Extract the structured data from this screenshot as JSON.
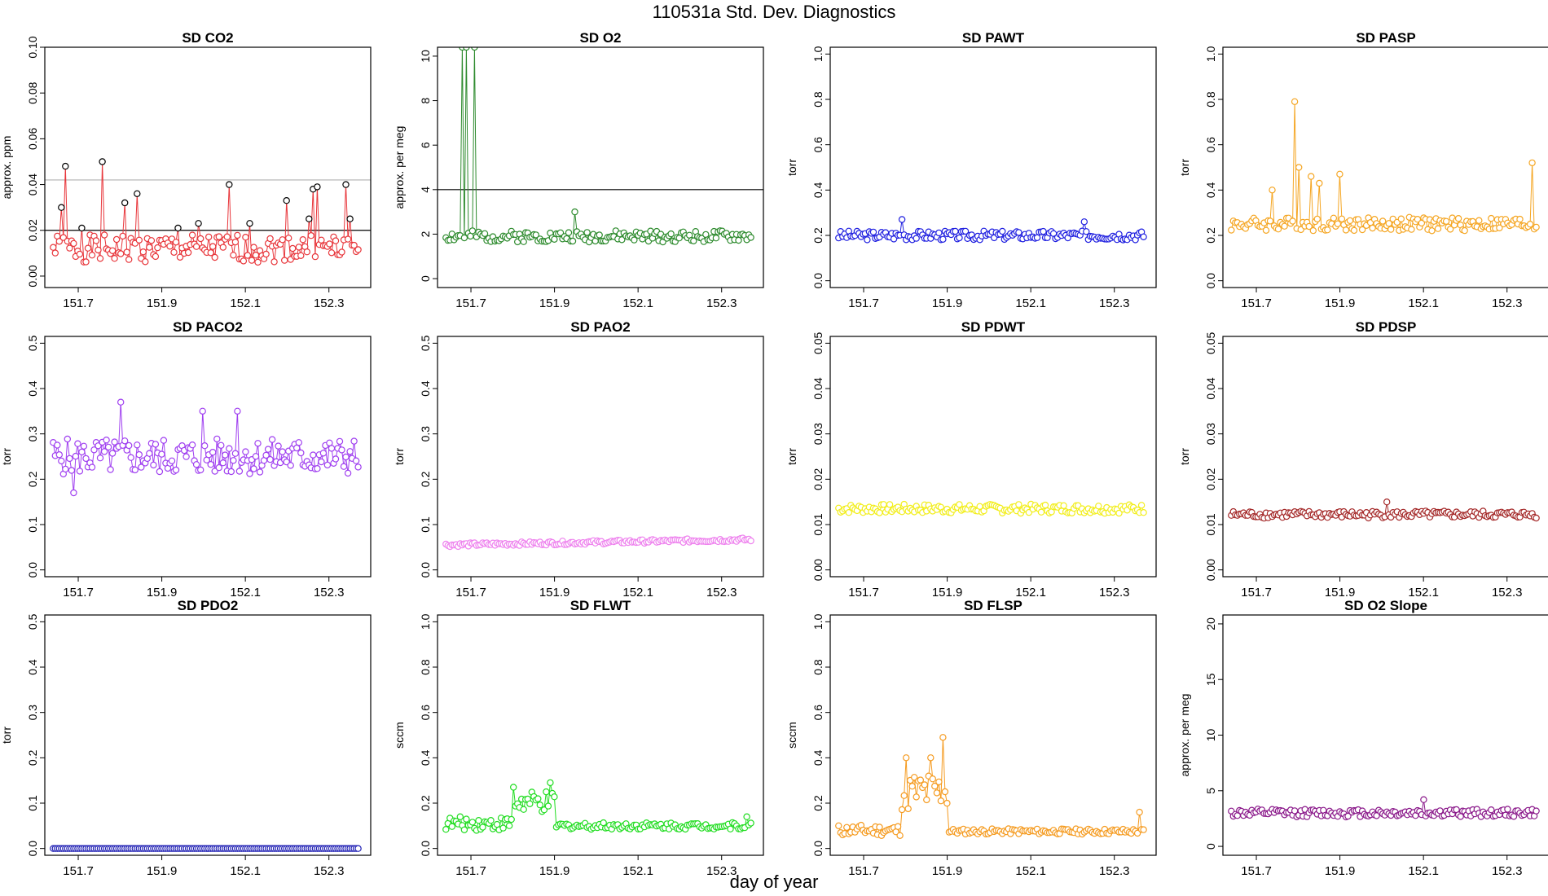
{
  "page_title": "110531a   Std. Dev. Diagnostics",
  "common_xlabel": "day of year",
  "chart_data": [
    {
      "type": "scatter",
      "title": "SD CO2",
      "ylabel": "approx. ppm",
      "color": "#e8363b",
      "xlim": [
        151.62,
        152.4
      ],
      "ylim": [
        -0.005,
        0.1
      ],
      "xticks": [
        "151.7",
        "151.9",
        "152.1",
        "152.3"
      ],
      "yticks": [
        "0.00",
        "0.02",
        "0.04",
        "0.06",
        "0.08",
        "0.10"
      ],
      "hlines": [
        {
          "y": 0.02,
          "color": "#000000"
        },
        {
          "y": 0.042,
          "color": "#b0b0b0"
        }
      ],
      "mean": 0.012,
      "spread": 0.006,
      "seed": 1,
      "spikes": [
        [
          151.66,
          0.03
        ],
        [
          151.67,
          0.048
        ],
        [
          151.71,
          0.021
        ],
        [
          151.76,
          0.05
        ],
        [
          151.81,
          0.032
        ],
        [
          151.84,
          0.036
        ],
        [
          151.94,
          0.021
        ],
        [
          151.99,
          0.023
        ],
        [
          152.06,
          0.04
        ],
        [
          152.11,
          0.023
        ],
        [
          152.2,
          0.033
        ],
        [
          152.25,
          0.025
        ],
        [
          152.26,
          0.038
        ],
        [
          152.27,
          0.039
        ],
        [
          152.34,
          0.04
        ],
        [
          152.35,
          0.025
        ]
      ],
      "outlined_black": true
    },
    {
      "type": "scatter",
      "title": "SD O2",
      "ylabel": "approx. per meg",
      "color": "#2e8b2e",
      "xlim": [
        151.62,
        152.4
      ],
      "ylim": [
        -0.4,
        10.4
      ],
      "xticks": [
        "151.7",
        "151.9",
        "152.1",
        "152.3"
      ],
      "yticks": [
        "0",
        "2",
        "4",
        "6",
        "8",
        "10"
      ],
      "hlines": [
        {
          "y": 4,
          "color": "#000000"
        }
      ],
      "mean": 1.9,
      "spread": 0.25,
      "seed": 2,
      "spikes": [
        [
          151.68,
          10.4
        ],
        [
          151.69,
          10.4
        ],
        [
          151.71,
          10.4
        ],
        [
          151.95,
          3.0
        ]
      ],
      "outlined_black": false
    },
    {
      "type": "scatter",
      "title": "SD PAWT",
      "ylabel": "torr",
      "color": "#2020e0",
      "xlim": [
        151.62,
        152.4
      ],
      "ylim": [
        -0.03,
        1.03
      ],
      "xticks": [
        "151.7",
        "151.9",
        "152.1",
        "152.3"
      ],
      "yticks": [
        "0.0",
        "0.2",
        "0.4",
        "0.6",
        "0.8",
        "1.0"
      ],
      "hlines": [],
      "mean": 0.2,
      "spread": 0.02,
      "seed": 3,
      "spikes": [
        [
          151.79,
          0.27
        ],
        [
          152.23,
          0.26
        ]
      ],
      "outlined_black": false
    },
    {
      "type": "scatter",
      "title": "SD PASP",
      "ylabel": "torr",
      "color": "#f5a623",
      "xlim": [
        151.62,
        152.4
      ],
      "ylim": [
        -0.03,
        1.03
      ],
      "xticks": [
        "151.7",
        "151.9",
        "152.1",
        "152.3"
      ],
      "yticks": [
        "0.0",
        "0.2",
        "0.4",
        "0.6",
        "0.8",
        "1.0"
      ],
      "hlines": [],
      "mean": 0.25,
      "spread": 0.03,
      "seed": 4,
      "spikes": [
        [
          151.79,
          0.79
        ],
        [
          151.8,
          0.5
        ],
        [
          151.83,
          0.46
        ],
        [
          151.85,
          0.43
        ],
        [
          151.9,
          0.47
        ],
        [
          151.74,
          0.4
        ],
        [
          152.36,
          0.52
        ]
      ],
      "outlined_black": false
    },
    {
      "type": "scatter",
      "title": "SD PACO2",
      "ylabel": "torr",
      "color": "#a040f0",
      "xlim": [
        151.62,
        152.4
      ],
      "ylim": [
        -0.015,
        0.515
      ],
      "xticks": [
        "151.7",
        "151.9",
        "152.1",
        "152.3"
      ],
      "yticks": [
        "0.0",
        "0.1",
        "0.2",
        "0.3",
        "0.4",
        "0.5"
      ],
      "hlines": [],
      "mean": 0.25,
      "spread": 0.04,
      "seed": 5,
      "spikes": [
        [
          151.8,
          0.37
        ],
        [
          152.0,
          0.35
        ],
        [
          152.08,
          0.35
        ],
        [
          151.69,
          0.17
        ]
      ],
      "outlined_black": false
    },
    {
      "type": "scatter",
      "title": "SD PAO2",
      "ylabel": "torr",
      "color": "#ee82ee",
      "xlim": [
        151.62,
        152.4
      ],
      "ylim": [
        -0.015,
        0.515
      ],
      "xticks": [
        "151.7",
        "151.9",
        "152.1",
        "152.3"
      ],
      "yticks": [
        "0.0",
        "0.1",
        "0.2",
        "0.3",
        "0.4",
        "0.5"
      ],
      "hlines": [],
      "mean": 0.055,
      "spread": 0.004,
      "seed": 6,
      "trend": 0.012,
      "spikes": [],
      "outlined_black": false
    },
    {
      "type": "scatter",
      "title": "SD PDWT",
      "ylabel": "torr",
      "color": "#f2ee1a",
      "xlim": [
        151.62,
        152.4
      ],
      "ylim": [
        -0.0015,
        0.0515
      ],
      "xticks": [
        "151.7",
        "151.9",
        "152.1",
        "152.3"
      ],
      "yticks": [
        "0.00",
        "0.01",
        "0.02",
        "0.03",
        "0.04",
        "0.05"
      ],
      "hlines": [],
      "mean": 0.0135,
      "spread": 0.001,
      "seed": 7,
      "spikes": [],
      "outlined_black": false
    },
    {
      "type": "scatter",
      "title": "SD PDSP",
      "ylabel": "torr",
      "color": "#a52a2a",
      "xlim": [
        151.62,
        152.4
      ],
      "ylim": [
        -0.0015,
        0.0515
      ],
      "xticks": [
        "151.7",
        "151.9",
        "152.1",
        "152.3"
      ],
      "yticks": [
        "0.00",
        "0.01",
        "0.02",
        "0.03",
        "0.04",
        "0.05"
      ],
      "hlines": [],
      "mean": 0.0122,
      "spread": 0.0008,
      "seed": 8,
      "spikes": [
        [
          152.01,
          0.015
        ]
      ],
      "outlined_black": false
    },
    {
      "type": "scatter",
      "title": "SD PDO2",
      "ylabel": "torr",
      "color": "#1f1fb4",
      "xlim": [
        151.62,
        152.4
      ],
      "ylim": [
        -0.015,
        0.515
      ],
      "xticks": [
        "151.7",
        "151.9",
        "152.1",
        "152.3"
      ],
      "yticks": [
        "0.0",
        "0.1",
        "0.2",
        "0.3",
        "0.4",
        "0.5"
      ],
      "hlines": [],
      "mean": 0.0,
      "spread": 0.0,
      "seed": 9,
      "spikes": [],
      "outlined_black": false
    },
    {
      "type": "scatter",
      "title": "SD FLWT",
      "ylabel": "sccm",
      "color": "#22dd22",
      "xlim": [
        151.62,
        152.4
      ],
      "ylim": [
        -0.03,
        1.03
      ],
      "xticks": [
        "151.7",
        "151.9",
        "152.1",
        "152.3"
      ],
      "yticks": [
        "0.0",
        "0.2",
        "0.4",
        "0.6",
        "0.8",
        "1.0"
      ],
      "hlines": [],
      "mean": 0.1,
      "spread": 0.015,
      "seed": 10,
      "segments": [
        [
          151.63,
          151.8,
          0.11,
          0.03
        ],
        [
          151.8,
          151.9,
          0.2,
          0.05
        ]
      ],
      "spikes": [
        [
          151.8,
          0.27
        ],
        [
          151.89,
          0.29
        ],
        [
          152.36,
          0.14
        ]
      ],
      "outlined_black": false
    },
    {
      "type": "scatter",
      "title": "SD FLSP",
      "ylabel": "sccm",
      "color": "#f59b20",
      "xlim": [
        151.62,
        152.4
      ],
      "ylim": [
        -0.03,
        1.03
      ],
      "xticks": [
        "151.7",
        "151.9",
        "152.1",
        "152.3"
      ],
      "yticks": [
        "0.0",
        "0.2",
        "0.4",
        "0.6",
        "0.8",
        "1.0"
      ],
      "hlines": [],
      "mean": 0.075,
      "spread": 0.012,
      "seed": 11,
      "segments": [
        [
          151.63,
          151.79,
          0.08,
          0.025
        ],
        [
          151.79,
          151.9,
          0.25,
          0.09
        ]
      ],
      "spikes": [
        [
          151.8,
          0.4
        ],
        [
          151.86,
          0.4
        ],
        [
          151.89,
          0.49
        ],
        [
          152.36,
          0.16
        ]
      ],
      "outlined_black": false
    },
    {
      "type": "scatter",
      "title": "SD O2 Slope",
      "ylabel": "approx. per meg",
      "color": "#8b1a8b",
      "xlim": [
        151.62,
        152.4
      ],
      "ylim": [
        -0.8,
        20.8
      ],
      "xticks": [
        "151.7",
        "151.9",
        "152.1",
        "152.3"
      ],
      "yticks": [
        "0",
        "5",
        "10",
        "15",
        "20"
      ],
      "hlines": [],
      "mean": 3.0,
      "spread": 0.35,
      "seed": 12,
      "spikes": [
        [
          152.1,
          4.2
        ]
      ],
      "outlined_black": false
    }
  ]
}
